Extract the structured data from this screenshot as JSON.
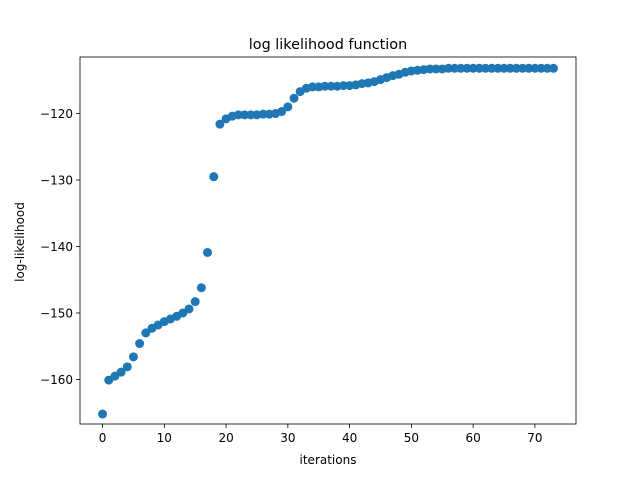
{
  "chart_data": {
    "type": "scatter",
    "title": "log likelihood function",
    "xlabel": "iterations",
    "ylabel": "log-likelihood",
    "xlim": [
      -3.65,
      76.65
    ],
    "ylim": [
      -166.7,
      -111.5
    ],
    "xticks": [
      0,
      10,
      20,
      30,
      40,
      50,
      60,
      70
    ],
    "yticks": [
      -160,
      -150,
      -140,
      -130,
      -120
    ],
    "tick_labels_x": [
      "0",
      "10",
      "20",
      "30",
      "40",
      "50",
      "60",
      "70"
    ],
    "tick_labels_y": [
      "−160",
      "−150",
      "−140",
      "−130",
      "−120"
    ],
    "grid": false,
    "legend": "none",
    "marker_color": "#1f77b4",
    "series": [
      {
        "x": [
          0,
          1,
          2,
          3,
          4,
          5,
          6,
          7,
          8,
          9,
          10,
          11,
          12,
          13,
          14,
          15,
          16,
          17,
          18,
          19,
          20,
          21,
          22,
          23,
          24,
          25,
          26,
          27,
          28,
          29,
          30,
          31,
          32,
          33,
          34,
          35,
          36,
          37,
          38,
          39,
          40,
          41,
          42,
          43,
          44,
          45,
          46,
          47,
          48,
          49,
          50,
          51,
          52,
          53,
          54,
          55,
          56,
          57,
          58,
          59,
          60,
          61,
          62,
          63,
          64,
          65,
          66,
          67,
          68,
          69,
          70,
          71,
          72,
          73
        ],
        "y": [
          -165.2,
          -160.1,
          -159.5,
          -158.9,
          -158.1,
          -156.6,
          -154.6,
          -153.0,
          -152.3,
          -151.8,
          -151.3,
          -150.9,
          -150.5,
          -150.0,
          -149.4,
          -148.3,
          -146.2,
          -140.9,
          -129.5,
          -121.6,
          -120.8,
          -120.4,
          -120.2,
          -120.2,
          -120.2,
          -120.2,
          -120.1,
          -120.1,
          -120.0,
          -119.7,
          -119.0,
          -117.7,
          -116.7,
          -116.2,
          -116.0,
          -116.0,
          -115.9,
          -115.9,
          -115.9,
          -115.8,
          -115.8,
          -115.7,
          -115.5,
          -115.4,
          -115.2,
          -114.9,
          -114.6,
          -114.3,
          -114.1,
          -113.8,
          -113.6,
          -113.5,
          -113.4,
          -113.3,
          -113.3,
          -113.3,
          -113.2,
          -113.2,
          -113.2,
          -113.2,
          -113.2,
          -113.2,
          -113.2,
          -113.2,
          -113.2,
          -113.2,
          -113.2,
          -113.2,
          -113.2,
          -113.2,
          -113.2,
          -113.2,
          -113.2,
          -113.2
        ]
      }
    ]
  }
}
